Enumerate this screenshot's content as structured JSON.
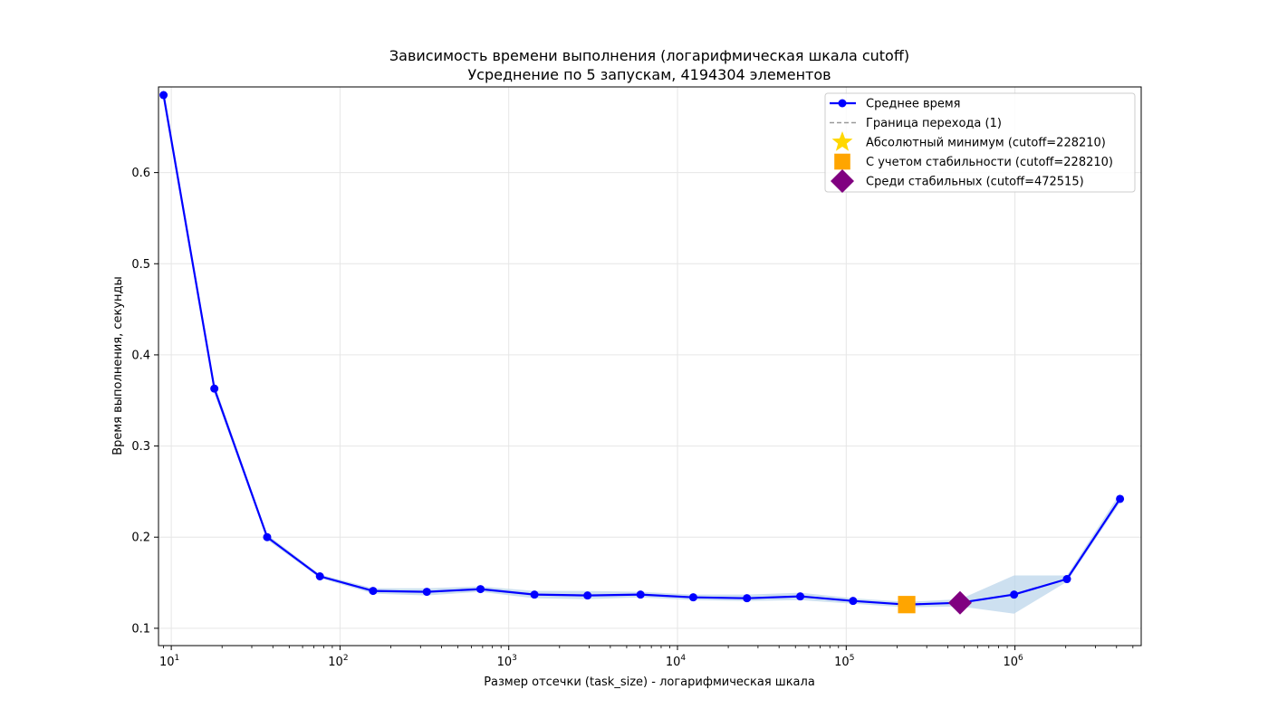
{
  "chart_data": {
    "type": "line",
    "title": "Зависимость времени выполнения (логарифмическая шкала cutoff)",
    "subtitle": "Усреднение по 5 запускам, 4194304 элементов",
    "xlabel": "Размер отсечки (task_size) - логарифмическая шкала",
    "ylabel": "Время выполнения, секунды",
    "xscale": "log",
    "xlim": [
      8.4,
      5600000
    ],
    "ylim": [
      0.081,
      0.694
    ],
    "grid": true,
    "legend_position": "top-right",
    "x_tick_labels": [
      {
        "value": 10,
        "base": "10",
        "exp": "1"
      },
      {
        "value": 100,
        "base": "10",
        "exp": "2"
      },
      {
        "value": 1000,
        "base": "10",
        "exp": "3"
      },
      {
        "value": 10000,
        "base": "10",
        "exp": "4"
      },
      {
        "value": 100000,
        "base": "10",
        "exp": "5"
      },
      {
        "value": 1000000,
        "base": "10",
        "exp": "6"
      }
    ],
    "y_ticks": [
      {
        "value": 0.1,
        "label": "0.1"
      },
      {
        "value": 0.2,
        "label": "0.2"
      },
      {
        "value": 0.3,
        "label": "0.3"
      },
      {
        "value": 0.4,
        "label": "0.4"
      },
      {
        "value": 0.5,
        "label": "0.5"
      },
      {
        "value": 0.6,
        "label": "0.6"
      }
    ],
    "series": [
      {
        "name": "Среднее время",
        "color": "#0000ff",
        "x": [
          9,
          18,
          37,
          76,
          157,
          327,
          680,
          1420,
          2930,
          6040,
          12400,
          25800,
          53400,
          109800,
          228210,
          472515,
          988000,
          2033000,
          4194304
        ],
        "y": [
          0.685,
          0.363,
          0.2,
          0.157,
          0.141,
          0.14,
          0.143,
          0.137,
          0.136,
          0.137,
          0.134,
          0.133,
          0.135,
          0.13,
          0.126,
          0.128,
          0.137,
          0.154,
          0.242
        ],
        "band_low": [
          0.68,
          0.358,
          0.197,
          0.155,
          0.138,
          0.136,
          0.14,
          0.133,
          0.132,
          0.134,
          0.131,
          0.13,
          0.131,
          0.127,
          0.123,
          0.124,
          0.116,
          0.151,
          0.238
        ],
        "band_high": [
          0.692,
          0.368,
          0.203,
          0.159,
          0.144,
          0.144,
          0.146,
          0.141,
          0.141,
          0.14,
          0.137,
          0.137,
          0.139,
          0.133,
          0.129,
          0.132,
          0.158,
          0.158,
          0.248
        ]
      }
    ],
    "band_color": "#b8d3ea",
    "markers": [
      {
        "name": "Абсолютный минимум (cutoff=228210)",
        "shape": "star",
        "color": "#ffd700",
        "x": 228210,
        "y": 0.126
      },
      {
        "name": "С учетом стабильности (cutoff=228210)",
        "shape": "square",
        "color": "#ffa500",
        "x": 228210,
        "y": 0.126
      },
      {
        "name": "Среди стабильных (cutoff=472515)",
        "shape": "diamond",
        "color": "#800080",
        "x": 472515,
        "y": 0.128
      }
    ],
    "transition_line": {
      "name": "Граница перехода (1)",
      "color": "#999999",
      "x": 1
    }
  },
  "legend": {
    "items": [
      {
        "label": "Среднее время",
        "kind": "line-marker",
        "color": "#0000ff"
      },
      {
        "label": "Граница перехода (1)",
        "kind": "dashed",
        "color": "#999999"
      },
      {
        "label": "Абсолютный минимум (cutoff=228210)",
        "kind": "star",
        "color": "#ffd700"
      },
      {
        "label": "С учетом стабильности (cutoff=228210)",
        "kind": "square",
        "color": "#ffa500"
      },
      {
        "label": "Среди стабильных (cutoff=472515)",
        "kind": "diamond",
        "color": "#800080"
      }
    ]
  }
}
